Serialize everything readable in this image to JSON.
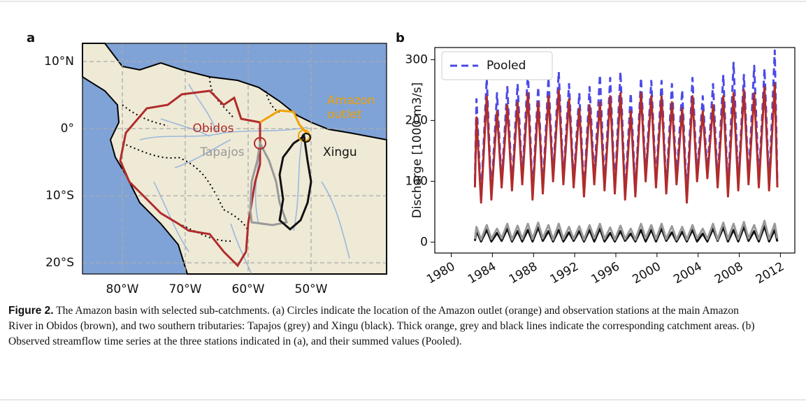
{
  "panel_a": {
    "label": "a",
    "lat_labels": [
      "10°N",
      "0°",
      "10°S",
      "20°S"
    ],
    "lon_labels": [
      "80°W",
      "70°W",
      "60°W",
      "50°W"
    ],
    "annotations": {
      "outlet": "Amazon outlet",
      "obidos": "Obidos",
      "tapajos": "Tapajos",
      "xingu": "Xingu"
    }
  },
  "chart_data": {
    "type": "line",
    "panel_label": "b",
    "y_label": "Discharge [1000 m3/s]",
    "x": [
      1982.3,
      1982.45,
      1982.9,
      1983.45,
      1983.9,
      1984.45,
      1984.9,
      1985.45,
      1985.9,
      1986.45,
      1986.9,
      1987.45,
      1987.9,
      1988.45,
      1988.9,
      1989.45,
      1989.9,
      1990.45,
      1990.9,
      1991.45,
      1991.9,
      1992.45,
      1992.9,
      1993.45,
      1993.9,
      1994.45,
      1994.9,
      1995.45,
      1995.9,
      1996.45,
      1996.9,
      1997.45,
      1997.9,
      1998.45,
      1998.9,
      1999.45,
      1999.9,
      2000.45,
      2000.9,
      2001.45,
      2001.9,
      2002.45,
      2002.9,
      2003.45,
      2003.9,
      2004.45,
      2004.9,
      2005.45,
      2005.9,
      2006.45,
      2006.9,
      2007.45,
      2007.9,
      2008.45,
      2008.9,
      2009.45,
      2009.9,
      2010.45,
      2010.9,
      2011.45,
      2011.7
    ],
    "series": [
      {
        "name": "Pooled",
        "color": "#4a4ae8",
        "dashed": true,
        "values": [
          100,
          235,
          72,
          270,
          78,
          245,
          98,
          255,
          93,
          260,
          103,
          280,
          78,
          255,
          88,
          270,
          108,
          280,
          103,
          260,
          98,
          245,
          83,
          255,
          103,
          275,
          93,
          270,
          88,
          280,
          78,
          245,
          83,
          270,
          108,
          265,
          98,
          265,
          88,
          260,
          103,
          250,
          73,
          270,
          108,
          240,
          113,
          260,
          98,
          275,
          83,
          295,
          93,
          275,
          103,
          290,
          98,
          285,
          93,
          315,
          98
        ]
      },
      {
        "color": "#b02c2c",
        "values": [
          90,
          205,
          65,
          240,
          70,
          215,
          90,
          225,
          85,
          230,
          95,
          245,
          70,
          230,
          80,
          240,
          100,
          250,
          95,
          235,
          90,
          220,
          75,
          225,
          95,
          230,
          85,
          240,
          80,
          245,
          70,
          215,
          75,
          245,
          100,
          240,
          90,
          240,
          80,
          230,
          95,
          220,
          65,
          240,
          100,
          215,
          105,
          225,
          90,
          240,
          75,
          245,
          85,
          250,
          95,
          245,
          90,
          255,
          85,
          260,
          90
        ]
      },
      {
        "color": "#111111",
        "values": [
          2,
          18,
          1,
          20,
          1,
          15,
          2,
          22,
          1,
          18,
          1,
          20,
          1,
          24,
          2,
          18,
          1,
          20,
          1,
          16,
          2,
          18,
          1,
          20,
          1,
          22,
          1,
          15,
          1,
          18,
          2,
          14,
          1,
          20,
          1,
          20,
          1,
          22,
          2,
          16,
          1,
          17,
          1,
          20,
          1,
          14,
          1,
          22,
          2,
          24,
          1,
          20,
          1,
          25,
          2,
          18,
          1,
          26,
          1,
          20,
          1
        ]
      },
      {
        "color": "#999999",
        "values": [
          5,
          25,
          4,
          28,
          5,
          22,
          6,
          30,
          4,
          27,
          5,
          30,
          5,
          32,
          6,
          28,
          4,
          30,
          5,
          25,
          5,
          26,
          4,
          28,
          6,
          30,
          5,
          24,
          4,
          27,
          5,
          22,
          4,
          30,
          6,
          28,
          5,
          30,
          5,
          26,
          4,
          25,
          4,
          28,
          6,
          22,
          5,
          30,
          4,
          32,
          5,
          30,
          5,
          33,
          6,
          28,
          5,
          35,
          5,
          30,
          6
        ]
      }
    ],
    "xlim": [
      1978.4,
      2013.4
    ],
    "xticks": [
      1980,
      1984,
      1988,
      1992,
      1996,
      2000,
      2004,
      2008,
      2012
    ],
    "ylim": [
      -18,
      320
    ],
    "yticks": [
      0,
      100,
      200,
      300
    ],
    "grid": false,
    "legend": "upper left"
  },
  "caption": {
    "label": "Figure 2.",
    "text": "The Amazon basin with selected sub-catchments. (a) Circles indicate the location of the Amazon outlet (orange) and observation stations at the main Amazon River in Obidos (brown), and two southern tributaries: Tapajos (grey) and Xingu (black). Thick orange, grey and black lines indicate the corresponding catchment areas. (b) Observed streamflow time series at the three stations indicated in (a), and their summed values (Pooled)."
  }
}
